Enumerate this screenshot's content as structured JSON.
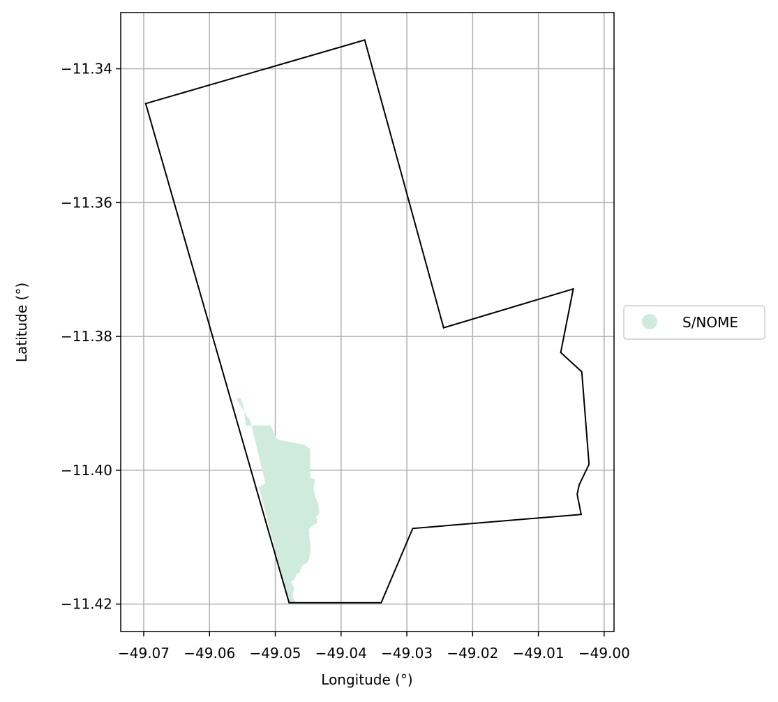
{
  "chart_data": {
    "type": "map",
    "xlabel": "Longitude (°)",
    "ylabel": "Latitude (°)",
    "xlim": [
      -49.0735,
      -48.9985
    ],
    "ylim": [
      -11.4241,
      -11.3316
    ],
    "x_ticks": [
      -49.07,
      -49.06,
      -49.05,
      -49.04,
      -49.03,
      -49.02,
      -49.01,
      -49.0
    ],
    "x_tick_labels": [
      "−49.07",
      "−49.06",
      "−49.05",
      "−49.04",
      "−49.03",
      "−49.02",
      "−49.01",
      "−49.00"
    ],
    "y_ticks": [
      -11.34,
      -11.36,
      -11.38,
      -11.4,
      -11.42
    ],
    "y_tick_labels": [
      "−11.34",
      "−11.36",
      "−11.38",
      "−11.40",
      "−11.42"
    ],
    "grid": true,
    "legend": {
      "placement": "center-right-outside",
      "entries": [
        {
          "label": "S/NOME",
          "color": "#ceebdd"
        }
      ]
    },
    "boundary": {
      "color": "#000000",
      "coordinates": [
        [
          -49.0697,
          -11.3452
        ],
        [
          -49.0364,
          -11.3357
        ],
        [
          -49.0244,
          -11.3787
        ],
        [
          -49.0047,
          -11.3729
        ],
        [
          -49.0066,
          -11.3824
        ],
        [
          -49.0034,
          -11.3853
        ],
        [
          -49.0023,
          -11.3991
        ],
        [
          -49.0038,
          -11.4022
        ],
        [
          -49.0041,
          -11.4036
        ],
        [
          -49.0035,
          -11.4066
        ],
        [
          -49.0291,
          -11.4087
        ],
        [
          -49.0339,
          -11.4198
        ],
        [
          -49.0479,
          -11.4198
        ],
        [
          -49.0697,
          -11.3452
        ]
      ]
    },
    "features": [
      {
        "name": "S/NOME",
        "color": "#ceebdd",
        "coordinates": [
          [
            -49.0559,
            -11.3893
          ],
          [
            -49.0553,
            -11.3892
          ],
          [
            -49.0548,
            -11.3906
          ],
          [
            -49.0545,
            -11.3933
          ],
          [
            -49.0507,
            -11.3933
          ],
          [
            -49.0497,
            -11.3954
          ],
          [
            -49.0455,
            -11.3962
          ],
          [
            -49.0447,
            -11.3968
          ],
          [
            -49.0447,
            -11.4011
          ],
          [
            -49.0439,
            -11.4014
          ],
          [
            -49.0442,
            -11.4028
          ],
          [
            -49.0439,
            -11.4041
          ],
          [
            -49.0435,
            -11.4048
          ],
          [
            -49.0433,
            -11.4065
          ],
          [
            -49.0438,
            -11.4069
          ],
          [
            -49.0436,
            -11.4078
          ],
          [
            -49.0445,
            -11.4084
          ],
          [
            -49.0449,
            -11.4089
          ],
          [
            -49.0448,
            -11.41
          ],
          [
            -49.0446,
            -11.4118
          ],
          [
            -49.0448,
            -11.413
          ],
          [
            -49.0451,
            -11.4138
          ],
          [
            -49.0457,
            -11.4141
          ],
          [
            -49.0461,
            -11.4146
          ],
          [
            -49.0463,
            -11.4153
          ],
          [
            -49.0468,
            -11.4155
          ],
          [
            -49.047,
            -11.4162
          ],
          [
            -49.0476,
            -11.4167
          ],
          [
            -49.0471,
            -11.4176
          ],
          [
            -49.0474,
            -11.4188
          ],
          [
            -49.0469,
            -11.4198
          ],
          [
            -49.0479,
            -11.4198
          ],
          [
            -49.0525,
            -11.4025
          ],
          [
            -49.0515,
            -11.402
          ],
          [
            -49.0538,
            -11.3925
          ],
          [
            -49.0542,
            -11.3921
          ],
          [
            -49.0559,
            -11.3893
          ]
        ]
      }
    ]
  }
}
